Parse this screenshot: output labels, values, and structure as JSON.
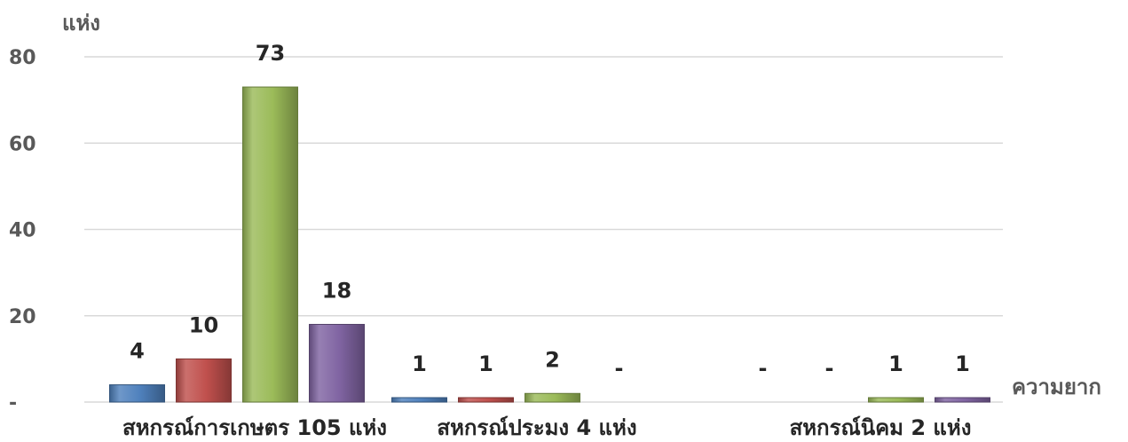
{
  "chart_data": {
    "type": "bar",
    "ylabel": "แห่ง",
    "xlabel": "ความยาก",
    "ylim": [
      0,
      80
    ],
    "yticks": [
      0,
      20,
      40,
      60,
      80
    ],
    "ytick_labels": [
      "-",
      "20",
      "40",
      "60",
      "80"
    ],
    "grid": true,
    "legend": "none",
    "categories": [
      "สหกรณ์การเกษตร 105 แห่ง",
      "สหกรณ์ประมง 4 แห่ง",
      "สหกรณ์นิคม 2 แห่ง"
    ],
    "series": [
      {
        "color": "#4f81bd",
        "values": [
          4,
          1,
          0
        ],
        "labels": [
          "4",
          "1",
          "-"
        ]
      },
      {
        "color": "#c0504d",
        "values": [
          10,
          1,
          0
        ],
        "labels": [
          "10",
          "1",
          "-"
        ]
      },
      {
        "color": "#9bbb59",
        "values": [
          73,
          2,
          1
        ],
        "labels": [
          "73",
          "2",
          "1"
        ]
      },
      {
        "color": "#8064a2",
        "values": [
          18,
          0,
          1
        ],
        "labels": [
          "18",
          "-",
          "1"
        ]
      }
    ]
  }
}
